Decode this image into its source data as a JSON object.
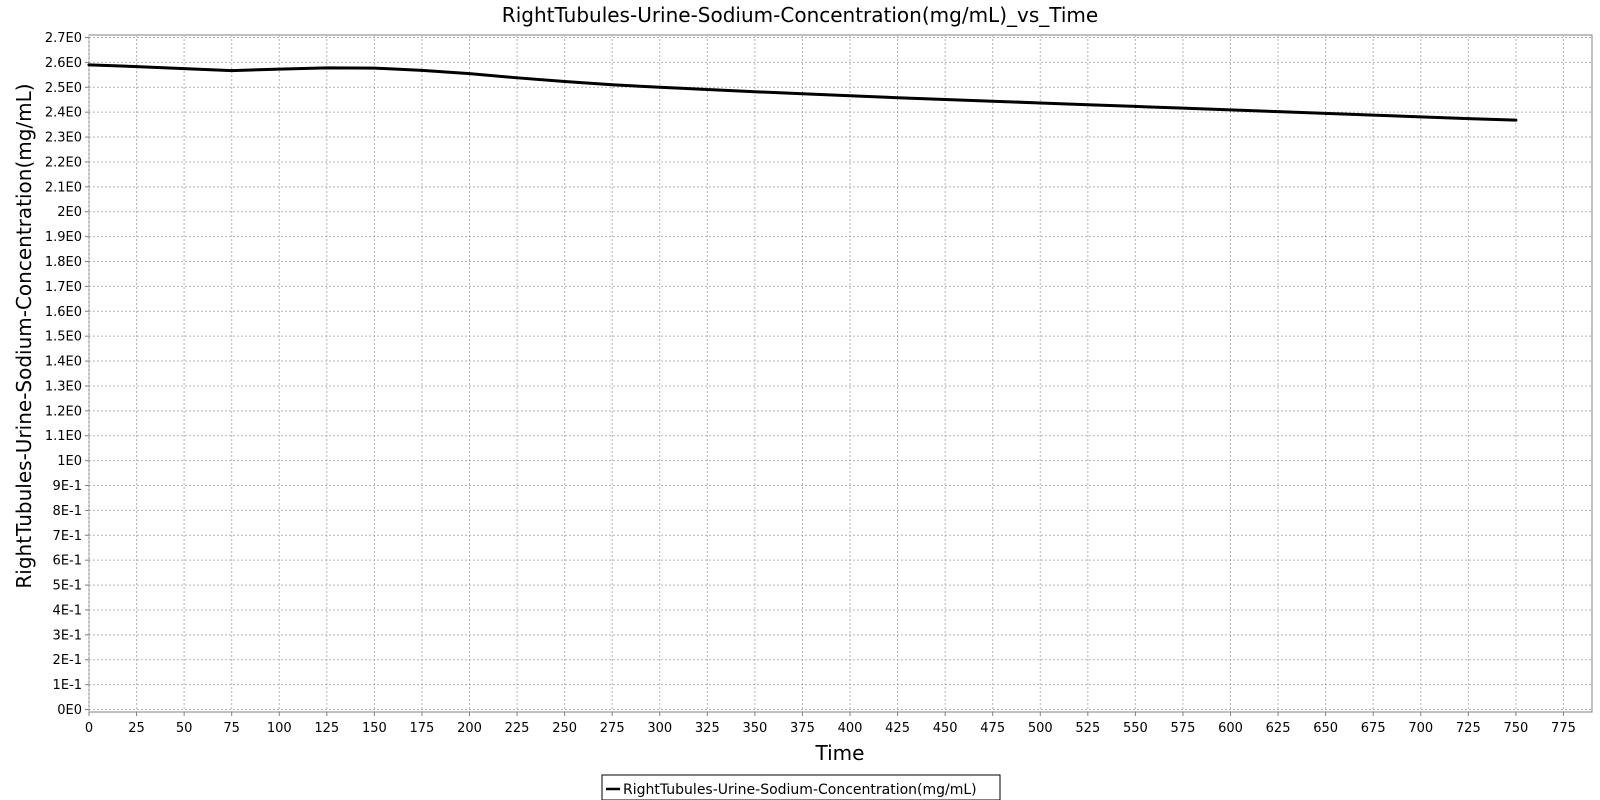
{
  "chart_data": {
    "type": "line",
    "title": "RightTubules-Urine-Sodium-Concentration(mg/mL)_vs_Time",
    "xlabel": "Time",
    "ylabel": "RightTubules-Urine-Sodium-Concentration(mg/mL)",
    "xlim": [
      0,
      790
    ],
    "ylim": [
      -0.01,
      2.71
    ],
    "x_ticks": [
      "0",
      "25",
      "50",
      "75",
      "100",
      "125",
      "150",
      "175",
      "200",
      "225",
      "250",
      "275",
      "300",
      "325",
      "350",
      "375",
      "400",
      "425",
      "450",
      "475",
      "500",
      "525",
      "550",
      "575",
      "600",
      "625",
      "650",
      "675",
      "700",
      "725",
      "750",
      "775"
    ],
    "y_ticks": [
      "0E0",
      "1E-1",
      "2E-1",
      "3E-1",
      "4E-1",
      "5E-1",
      "6E-1",
      "7E-1",
      "8E-1",
      "9E-1",
      "1E0",
      "1.1E0",
      "1.2E0",
      "1.3E0",
      "1.4E0",
      "1.5E0",
      "1.6E0",
      "1.7E0",
      "1.8E0",
      "1.9E0",
      "2E0",
      "2.1E0",
      "2.2E0",
      "2.3E0",
      "2.4E0",
      "2.5E0",
      "2.6E0",
      "2.7E0"
    ],
    "grid": true,
    "legend_position": "bottom-center",
    "series": [
      {
        "name": "RightTubules-Urine-Sodium-Concentration(mg/mL)",
        "color": "#000000",
        "x": [
          0,
          25,
          50,
          75,
          100,
          125,
          150,
          175,
          200,
          225,
          250,
          275,
          300,
          325,
          350,
          375,
          400,
          425,
          450,
          475,
          500,
          525,
          550,
          575,
          600,
          625,
          650,
          675,
          700,
          725,
          750
        ],
        "y": [
          2.59,
          2.583,
          2.575,
          2.567,
          2.573,
          2.578,
          2.577,
          2.568,
          2.555,
          2.538,
          2.523,
          2.51,
          2.5,
          2.491,
          2.482,
          2.474,
          2.466,
          2.458,
          2.451,
          2.444,
          2.437,
          2.43,
          2.423,
          2.416,
          2.409,
          2.402,
          2.395,
          2.388,
          2.381,
          2.374,
          2.368
        ]
      }
    ]
  }
}
